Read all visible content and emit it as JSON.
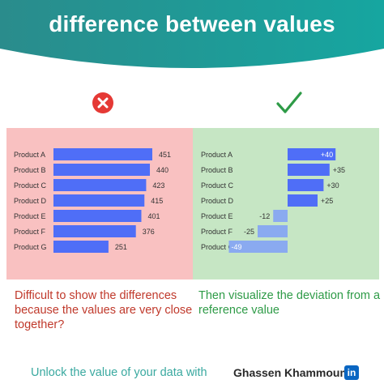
{
  "header": {
    "title": "difference between values",
    "gradient_from": "#2a8c8c",
    "gradient_to": "#16a6a0"
  },
  "icons": {
    "left": "cross-circle-icon",
    "right": "checkmark-icon",
    "cross_color": "#e53935",
    "check_color": "#2e9b47"
  },
  "captions": {
    "left": "Difficult to show the differences because the values are very close together?",
    "right": "Then visualize the deviation from a reference value"
  },
  "footer": {
    "cta": "Unlock the value of your data with",
    "author": "Ghassen Khammouma",
    "linkedin_label": "in"
  },
  "chart_data": [
    {
      "type": "bar",
      "orientation": "horizontal",
      "categories": [
        "Product A",
        "Product B",
        "Product C",
        "Product D",
        "Product E",
        "Product F",
        "Product G"
      ],
      "values": [
        451,
        440,
        423,
        415,
        401,
        376,
        251
      ],
      "data_labels": [
        "451",
        "440",
        "423",
        "415",
        "401",
        "376",
        "251"
      ],
      "xlim": [
        0,
        451
      ],
      "bar_color": "#4f6ef7",
      "background": "#f9c1c1"
    },
    {
      "type": "bar",
      "orientation": "horizontal",
      "categories": [
        "Product A",
        "Product B",
        "Product C",
        "Product D",
        "Product E",
        "Product F",
        "Product G"
      ],
      "values": [
        40,
        35,
        30,
        25,
        -12,
        -25,
        -49
      ],
      "data_labels": [
        "+40",
        "+35",
        "+30",
        "+25",
        "-12",
        "-25",
        "-49"
      ],
      "xlim": [
        -49,
        40
      ],
      "positive_color": "#4f6ef7",
      "negative_color": "#8aaaf0",
      "background": "#c6e6c4"
    }
  ]
}
